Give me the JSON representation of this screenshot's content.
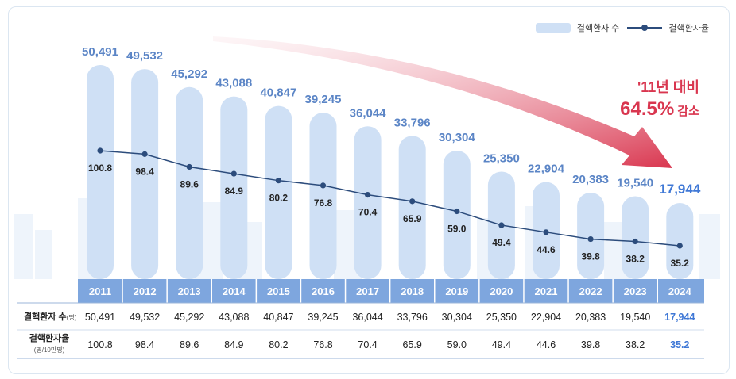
{
  "legend": {
    "bar_label": "결핵환자 수",
    "line_label": "결핵환자율"
  },
  "annotation": {
    "line1": "'11년 대비",
    "percent": "64.5%",
    "suffix": " 감소"
  },
  "table": {
    "row1_label": "결핵환자 수",
    "row1_unit": "(명)",
    "row2_label": "결핵환자율",
    "row2_unit": "(명/10만명)"
  },
  "chart_data": {
    "type": "bar+line",
    "categories": [
      "2011",
      "2012",
      "2013",
      "2014",
      "2015",
      "2016",
      "2017",
      "2018",
      "2019",
      "2020",
      "2021",
      "2022",
      "2023",
      "2024"
    ],
    "series": [
      {
        "name": "결핵환자 수",
        "type": "bar",
        "values": [
          50491,
          49532,
          45292,
          43088,
          40847,
          39245,
          36044,
          33796,
          30304,
          25350,
          22904,
          20383,
          19540,
          17944
        ],
        "labels": [
          "50,491",
          "49,532",
          "45,292",
          "43,088",
          "40,847",
          "39,245",
          "36,044",
          "33,796",
          "30,304",
          "25,350",
          "22,904",
          "20,383",
          "19,540",
          "17,944"
        ]
      },
      {
        "name": "결핵환자율",
        "type": "line",
        "values": [
          100.8,
          98.4,
          89.6,
          84.9,
          80.2,
          76.8,
          70.4,
          65.9,
          59.0,
          49.4,
          44.6,
          39.8,
          38.2,
          35.2
        ],
        "labels": [
          "100.8",
          "98.4",
          "89.6",
          "84.9",
          "80.2",
          "76.8",
          "70.4",
          "65.9",
          "59.0",
          "49.4",
          "44.6",
          "39.8",
          "38.2",
          "35.2"
        ]
      }
    ],
    "highlight_index": 13,
    "colors": {
      "bar": "#cfe0f5",
      "bar_label": "#5b85c6",
      "line": "#2c4c7c",
      "header": "#7ea6de",
      "highlight_text": "#3f78d6",
      "arrow": "#d9364f"
    }
  }
}
